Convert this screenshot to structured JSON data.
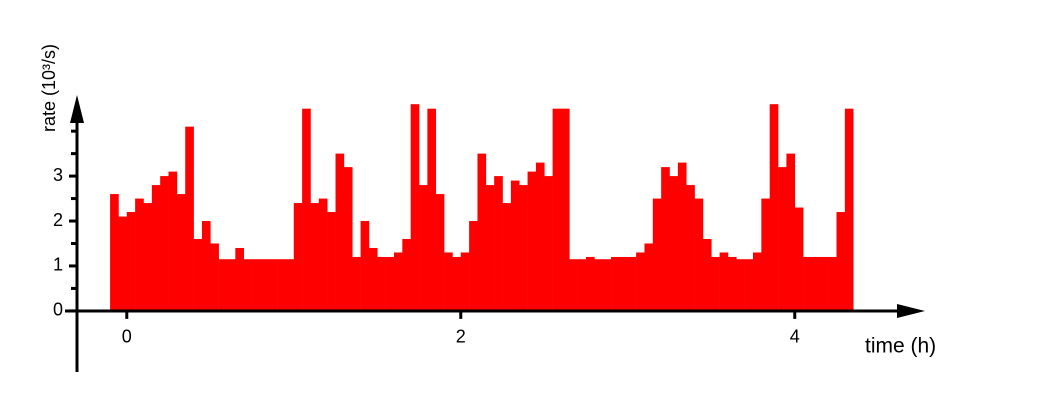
{
  "chart_data": {
    "type": "histogram",
    "x_label": "time (h)",
    "y_label": "rate (10³/s)",
    "color": "#ff0000",
    "bins": [
      -0.1,
      -0.05,
      0,
      0.05,
      0.1,
      0.15,
      0.2,
      0.25,
      0.3,
      0.35,
      0.4,
      0.45,
      0.5,
      0.55,
      0.6,
      0.65,
      0.7,
      0.75,
      0.8,
      0.85,
      0.9,
      0.95,
      1.0,
      1.05,
      1.1,
      1.15,
      1.2,
      1.25,
      1.3,
      1.35,
      1.4,
      1.45,
      1.5,
      1.55,
      1.6,
      1.65,
      1.7,
      1.75,
      1.8,
      1.85,
      1.9,
      1.95,
      2.0,
      2.05,
      2.1,
      2.15,
      2.2,
      2.25,
      2.3,
      2.35,
      2.4,
      2.45,
      2.5,
      2.55,
      2.6,
      2.65,
      2.7,
      2.75,
      2.8,
      2.85,
      2.9,
      2.95,
      3.0,
      3.05,
      3.1,
      3.15,
      3.2,
      3.25,
      3.3,
      3.35,
      3.4,
      3.45,
      3.5,
      3.55,
      3.6,
      3.65,
      3.7,
      3.75,
      3.8,
      3.85,
      3.9,
      3.95,
      4.0,
      4.05,
      4.1,
      4.15,
      4.2,
      4.25,
      4.3,
      4.35
    ],
    "values": [
      2.6,
      2.1,
      2.2,
      2.5,
      2.4,
      2.8,
      3.0,
      3.1,
      2.6,
      4.1,
      1.6,
      2.0,
      1.5,
      1.15,
      1.15,
      1.4,
      1.15,
      1.15,
      1.15,
      1.15,
      1.15,
      1.15,
      2.4,
      4.5,
      2.4,
      2.5,
      2.2,
      3.5,
      3.2,
      1.2,
      2.0,
      1.4,
      1.2,
      1.2,
      1.3,
      1.6,
      4.6,
      2.8,
      4.5,
      2.6,
      1.3,
      1.2,
      1.3,
      2.0,
      3.5,
      2.8,
      3.0,
      2.4,
      2.9,
      2.8,
      3.1,
      3.3,
      3.0,
      4.5,
      4.5,
      1.15,
      1.15,
      1.2,
      1.15,
      1.15,
      1.2,
      1.2,
      1.2,
      1.3,
      1.5,
      2.5,
      3.2,
      3.0,
      3.3,
      2.8,
      2.5,
      1.6,
      1.2,
      1.3,
      1.2,
      1.15,
      1.15,
      1.3,
      2.5,
      4.6,
      3.2,
      3.5,
      2.3,
      1.2,
      1.2,
      1.2,
      1.2,
      2.2,
      4.5
    ],
    "xlim": [
      -0.37,
      4.75
    ],
    "ylim": [
      -1.36,
      4.76
    ],
    "xticks": [
      0,
      2,
      4
    ],
    "yticks": [
      0,
      1,
      2,
      3
    ],
    "yminorticks": [
      0.5,
      1.5,
      2.5,
      3.5,
      4
    ]
  }
}
